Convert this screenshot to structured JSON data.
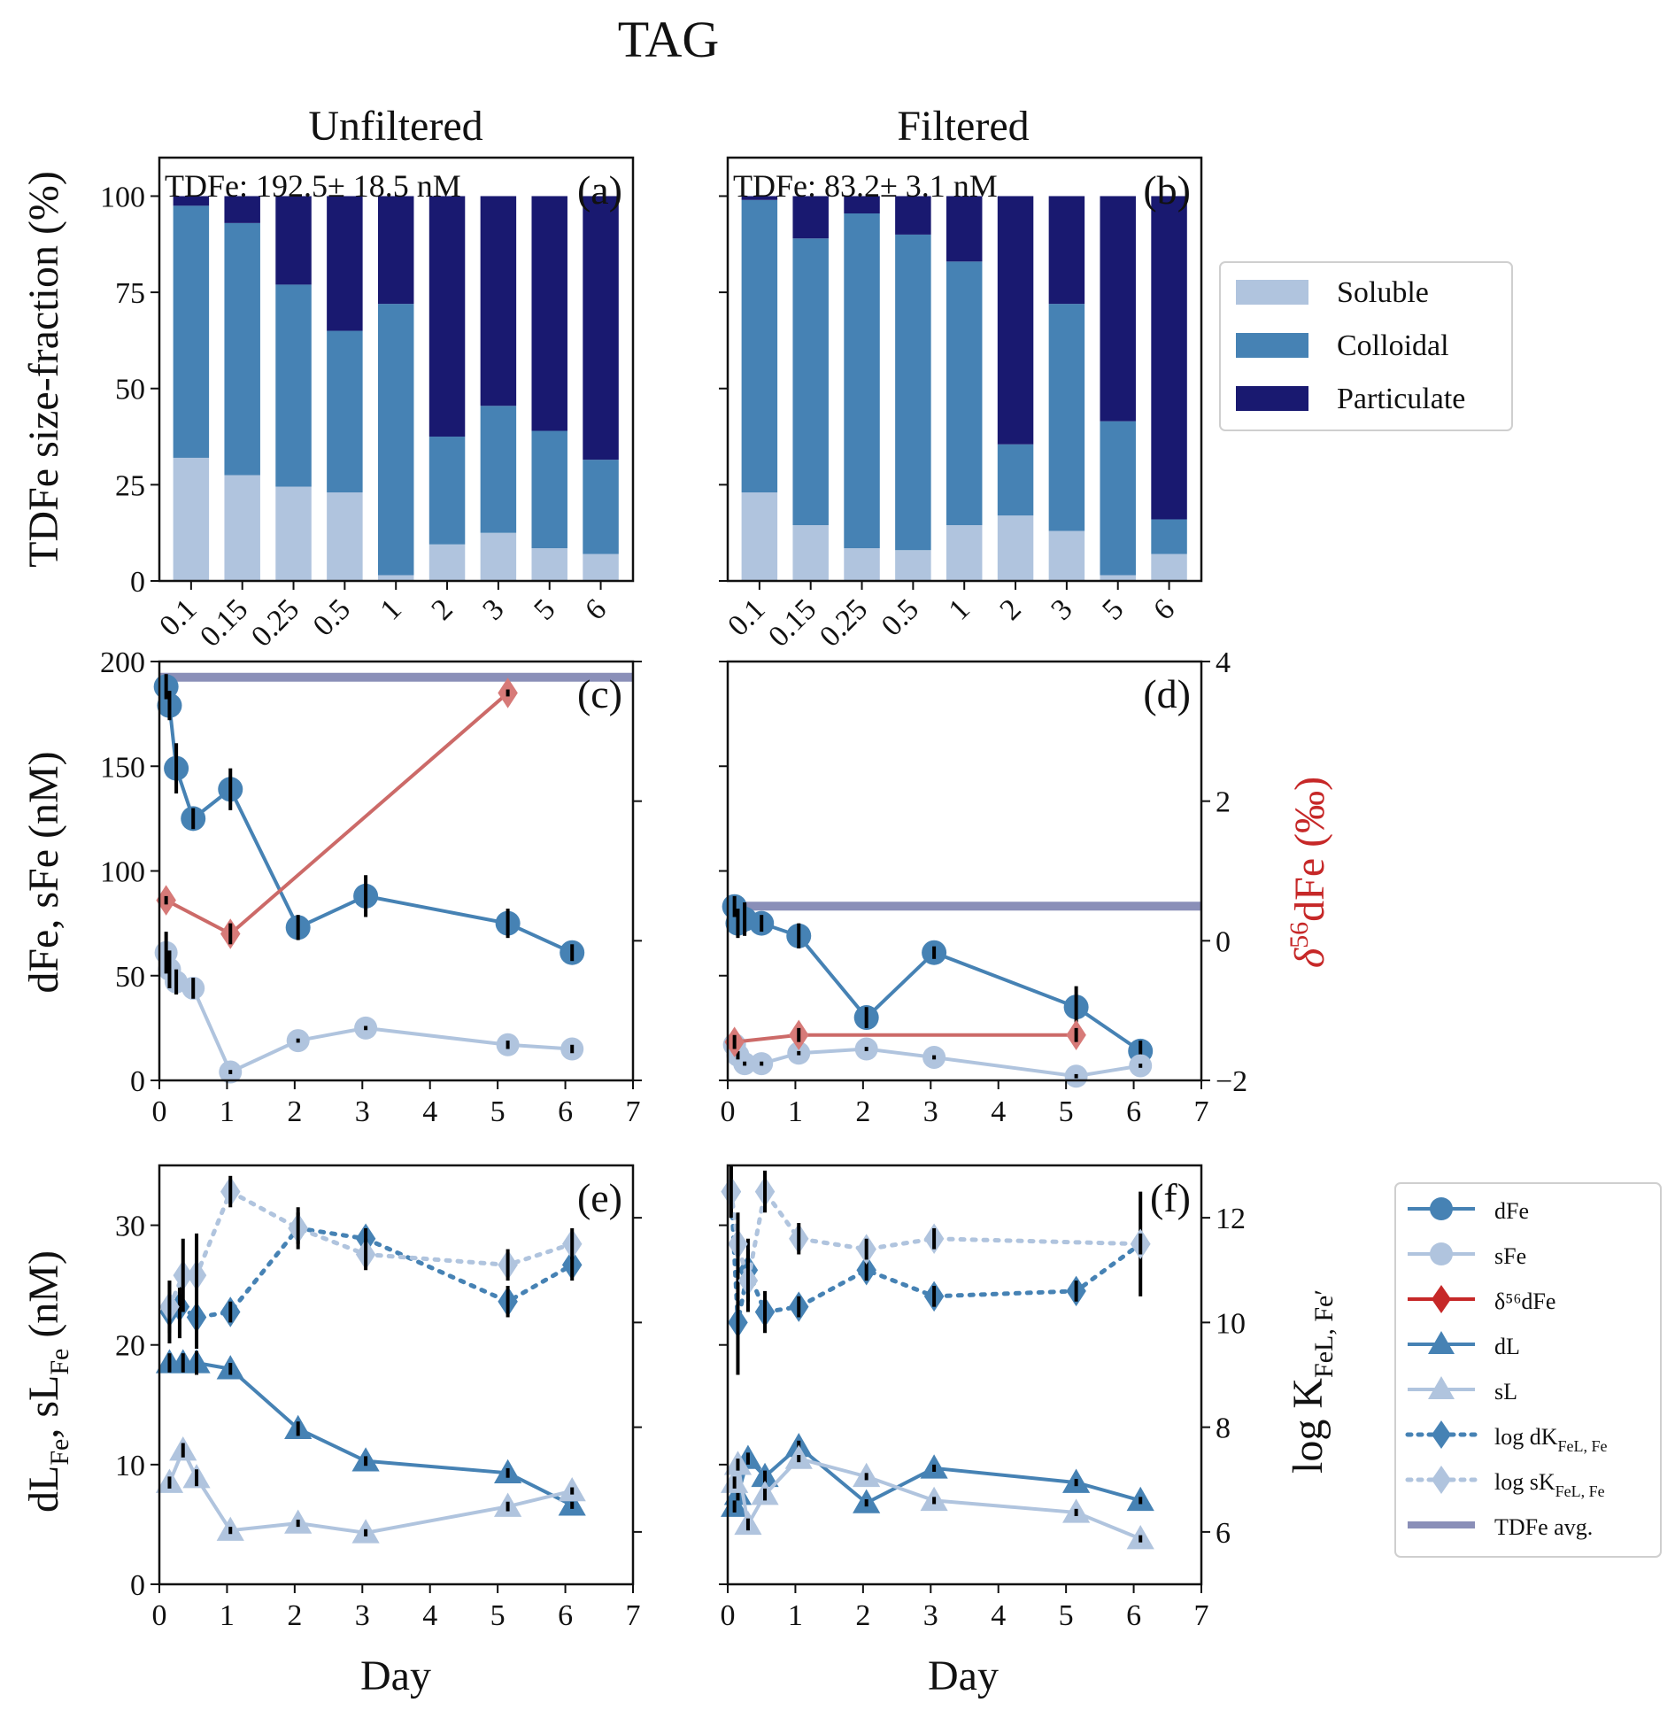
{
  "figure": {
    "suptitle": "TAG",
    "col_titles": [
      "Unfiltered",
      "Filtered"
    ],
    "xlabel_bottom": "Day",
    "ylabel_a": "TDFe size-fraction (%)",
    "ylabel_c": "dFe, sFe (nM)",
    "ylabel_c_right": "δ56dFe (‰)",
    "ylabel_e": "dL_Fe, sL_Fe (nM)",
    "ylabel_e_right": "log K_FeL,Fe′"
  },
  "legend_top": {
    "entries": [
      {
        "label": "Soluble",
        "color": "#b0c4de"
      },
      {
        "label": "Colloidal",
        "color": "#4682b4"
      },
      {
        "label": "Particulate",
        "color": "#191970"
      }
    ]
  },
  "legend_bottom": {
    "entries": [
      {
        "label": "dFe",
        "marker": "circle",
        "line": "solid",
        "color": "#4682b4"
      },
      {
        "label": "sFe",
        "marker": "circle",
        "line": "solid",
        "color": "#b0c4de"
      },
      {
        "label": "δ⁵⁶dFe",
        "marker": "diamond",
        "line": "solid",
        "color": "#c62828"
      },
      {
        "label": "dL",
        "marker": "triangle",
        "line": "solid",
        "color": "#4682b4"
      },
      {
        "label": "sL",
        "marker": "triangle",
        "line": "solid",
        "color": "#b0c4de"
      },
      {
        "label": "log dK",
        "sub": "FeL, Fe",
        "marker": "diamond",
        "line": "dotted",
        "color": "#4682b4"
      },
      {
        "label": "log sK",
        "sub": "FeL, Fe",
        "marker": "diamond",
        "line": "dotted",
        "color": "#b0c4de"
      },
      {
        "label": "TDFe avg.",
        "marker": "none",
        "line": "thick",
        "color": "#8a8fb8"
      }
    ]
  },
  "chart_data": [
    {
      "panel": "a",
      "type": "bar",
      "stacked": true,
      "annotation": "TDFe: 192.5± 18.5 nM",
      "categories": [
        "0.1",
        "0.15",
        "0.25",
        "0.5",
        "1",
        "2",
        "3",
        "5",
        "6"
      ],
      "ylim": [
        0,
        110
      ],
      "yticks": [
        0,
        25,
        50,
        75,
        100
      ],
      "series": [
        {
          "name": "Soluble",
          "values": [
            32,
            27.5,
            24.5,
            23,
            1.5,
            9.5,
            12.5,
            8.5,
            7
          ]
        },
        {
          "name": "Colloidal",
          "values": [
            65.5,
            65.5,
            52.5,
            42,
            70.5,
            28,
            33,
            30.5,
            24.5
          ]
        },
        {
          "name": "Particulate",
          "values": [
            2.5,
            7,
            23,
            35,
            28,
            62.5,
            54.5,
            61,
            68.5
          ]
        }
      ]
    },
    {
      "panel": "b",
      "type": "bar",
      "stacked": true,
      "annotation": "TDFe: 83.2± 3.1 nM",
      "categories": [
        "0.1",
        "0.15",
        "0.25",
        "0.5",
        "1",
        "2",
        "3",
        "5",
        "6"
      ],
      "ylim": [
        0,
        110
      ],
      "yticks": [
        0,
        25,
        50,
        75,
        100
      ],
      "series": [
        {
          "name": "Soluble",
          "values": [
            23,
            14.5,
            8.5,
            8,
            14.5,
            17,
            13,
            1.5,
            7
          ]
        },
        {
          "name": "Colloidal",
          "values": [
            76,
            74.5,
            87,
            82,
            68.5,
            18.5,
            59,
            40,
            9
          ]
        },
        {
          "name": "Particulate",
          "values": [
            1,
            11,
            4.5,
            10,
            17,
            64.5,
            28,
            58.5,
            84
          ]
        }
      ]
    },
    {
      "panel": "c",
      "type": "line",
      "xlim": [
        0,
        7
      ],
      "ylim": [
        0,
        200
      ],
      "y2lim": [
        -2,
        4
      ],
      "xticks": [
        0,
        1,
        2,
        3,
        4,
        5,
        6,
        7
      ],
      "yticks": [
        0,
        50,
        100,
        150,
        200
      ],
      "y2ticks": [
        -2,
        0,
        2,
        4
      ],
      "tdfe_avg": 192.5,
      "series": [
        {
          "name": "dFe",
          "x": [
            0.1,
            0.15,
            0.25,
            0.5,
            1.05,
            2.05,
            3.05,
            5.15,
            6.1
          ],
          "y": [
            188,
            179,
            149,
            125,
            139,
            73,
            88,
            75,
            61
          ],
          "err": [
            6,
            7,
            12,
            5,
            10,
            6,
            10,
            7,
            4
          ]
        },
        {
          "name": "sFe",
          "x": [
            0.1,
            0.15,
            0.25,
            0.5,
            1.05,
            2.05,
            3.05,
            5.15,
            6.1
          ],
          "y": [
            61,
            53,
            47,
            44,
            4,
            19,
            25,
            17,
            15
          ],
          "err": [
            10,
            9,
            6,
            5,
            1,
            1,
            1,
            2,
            2
          ]
        },
        {
          "name": "δ56dFe",
          "axis": "right",
          "x": [
            0.1,
            1.05,
            5.15
          ],
          "y": [
            0.58,
            0.1,
            3.55
          ],
          "err": [
            0.06,
            0.15,
            0.05
          ]
        }
      ]
    },
    {
      "panel": "d",
      "type": "line",
      "xlim": [
        0,
        7
      ],
      "ylim": [
        0,
        200
      ],
      "y2lim": [
        -2,
        4
      ],
      "xticks": [
        0,
        1,
        2,
        3,
        4,
        5,
        6,
        7
      ],
      "yticks": [
        0,
        50,
        100,
        150,
        200
      ],
      "y2ticks": [
        -2,
        0,
        2,
        4
      ],
      "tdfe_avg": 83.2,
      "series": [
        {
          "name": "dFe",
          "x": [
            0.1,
            0.15,
            0.25,
            0.5,
            1.05,
            2.05,
            3.05,
            5.15,
            6.1
          ],
          "y": [
            83,
            75,
            77,
            75,
            69,
            30,
            61,
            35,
            14
          ],
          "err": [
            5,
            7,
            8,
            4,
            6,
            5,
            3,
            10,
            5
          ]
        },
        {
          "name": "sFe",
          "x": [
            0.1,
            0.15,
            0.25,
            0.5,
            1.05,
            2.05,
            3.05,
            5.15,
            6.1
          ],
          "y": [
            17,
            12,
            8,
            8,
            13,
            15,
            11,
            2,
            7
          ],
          "err": [
            2,
            2,
            1,
            1,
            1,
            1,
            1,
            1,
            1
          ]
        },
        {
          "name": "δ56dFe",
          "axis": "right",
          "x": [
            0.1,
            1.05,
            5.15
          ],
          "y": [
            -1.45,
            -1.35,
            -1.35
          ],
          "err": [
            0.1,
            0.1,
            0.1
          ]
        }
      ]
    },
    {
      "panel": "e",
      "type": "line",
      "xlim": [
        0,
        7
      ],
      "ylim": [
        0,
        35
      ],
      "y2lim": [
        5,
        13
      ],
      "xticks": [
        0,
        1,
        2,
        3,
        4,
        5,
        6,
        7
      ],
      "yticks": [
        0,
        10,
        20,
        30
      ],
      "y2ticks": [
        6,
        8,
        10,
        12
      ],
      "series": [
        {
          "name": "dL",
          "x": [
            0.15,
            0.35,
            0.55,
            1.05,
            2.05,
            3.05,
            5.15,
            6.1
          ],
          "y": [
            18.5,
            18.5,
            18.5,
            18,
            13,
            10.3,
            9.3,
            6.6
          ],
          "err": [
            0.8,
            0.8,
            1.0,
            0.5,
            0.6,
            0.4,
            0.4,
            0.3
          ]
        },
        {
          "name": "sL",
          "x": [
            0.15,
            0.35,
            0.55,
            1.05,
            2.05,
            3.05,
            5.15,
            6.1
          ],
          "y": [
            8.5,
            11.2,
            8.9,
            4.5,
            5.1,
            4.3,
            6.5,
            7.8
          ],
          "err": [
            0.5,
            0.6,
            0.7,
            0.3,
            0.3,
            0.3,
            0.4,
            0.3
          ]
        },
        {
          "name": "log dK",
          "axis": "right",
          "x": [
            0.15,
            0.3,
            0.55,
            1.05,
            2.05,
            3.05,
            5.15,
            6.1
          ],
          "y": [
            10.2,
            10.3,
            10.1,
            10.2,
            11.8,
            11.6,
            10.4,
            11.1
          ],
          "err": [
            0.6,
            0.6,
            0.6,
            0.2,
            0.3,
            0.2,
            0.3,
            0.3
          ]
        },
        {
          "name": "log sK",
          "axis": "right",
          "x": [
            0.15,
            0.35,
            0.55,
            1.05,
            2.05,
            3.05,
            5.15,
            6.1
          ],
          "y": [
            10.3,
            10.9,
            10.9,
            12.5,
            11.8,
            11.3,
            11.1,
            11.5
          ],
          "err": [
            0.5,
            0.7,
            0.8,
            0.3,
            0.4,
            0.3,
            0.3,
            0.3
          ]
        }
      ]
    },
    {
      "panel": "f",
      "type": "line",
      "xlim": [
        0,
        7
      ],
      "ylim": [
        0,
        35
      ],
      "y2lim": [
        5,
        13
      ],
      "xticks": [
        0,
        1,
        2,
        3,
        4,
        5,
        6,
        7
      ],
      "yticks": [
        0,
        10,
        20,
        30
      ],
      "y2ticks": [
        6,
        8,
        10,
        12
      ],
      "series": [
        {
          "name": "dL",
          "x": [
            0.1,
            0.15,
            0.3,
            0.55,
            1.05,
            2.05,
            3.05,
            5.15,
            6.1
          ],
          "y": [
            6.5,
            7.5,
            10.5,
            9,
            11.5,
            6.8,
            9.7,
            8.5,
            7
          ],
          "err": [
            0.5,
            0.5,
            0.5,
            0.5,
            0.5,
            0.3,
            0.3,
            0.3,
            0.3
          ]
        },
        {
          "name": "sL",
          "x": [
            0.1,
            0.15,
            0.3,
            0.55,
            1.05,
            2.05,
            3.05,
            5.15,
            6.1
          ],
          "y": [
            8.5,
            10,
            5,
            7.5,
            10.5,
            9,
            7,
            6,
            3.8
          ],
          "err": [
            0.5,
            0.5,
            0.5,
            0.5,
            0.3,
            0.3,
            0.3,
            0.3,
            0.3
          ]
        },
        {
          "name": "log dK",
          "axis": "right",
          "x": [
            0.05,
            0.15,
            0.3,
            0.55,
            1.05,
            2.05,
            3.05,
            5.15,
            6.1
          ],
          "y": [
            12.5,
            10,
            11,
            10.2,
            10.3,
            11,
            10.5,
            10.6,
            11.5
          ],
          "err": [
            0.5,
            1.0,
            0.6,
            0.4,
            0.2,
            0.2,
            0.2,
            0.2,
            1.0
          ]
        },
        {
          "name": "log sK",
          "axis": "right",
          "x": [
            0.05,
            0.15,
            0.3,
            0.55,
            1.05,
            2.05,
            3.05,
            6.1
          ],
          "y": [
            12.5,
            11.5,
            10.8,
            12.5,
            11.6,
            11.4,
            11.6,
            11.5
          ],
          "err": [
            0.5,
            0.6,
            0.6,
            0.4,
            0.3,
            0.2,
            0.2,
            0.2
          ]
        }
      ]
    }
  ]
}
